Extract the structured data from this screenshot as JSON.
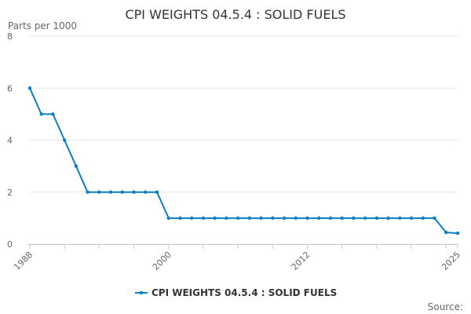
{
  "chart_data": {
    "type": "line",
    "title": "CPI WEIGHTS 04.5.4 : SOLID FUELS",
    "ylabel": "Parts per 1000",
    "xlabel": "",
    "ylim": [
      0,
      8
    ],
    "yticks": [
      "0",
      "2",
      "4",
      "6",
      "8"
    ],
    "xlim": [
      1988,
      2025
    ],
    "xticks": [
      "1988",
      "2000",
      "2012",
      "2025"
    ],
    "grid": true,
    "legend_position": "bottom",
    "series": [
      {
        "name": "CPI WEIGHTS 04.5.4 : SOLID FUELS",
        "color": "#0a7fc0",
        "x": [
          1988,
          1989,
          1990,
          1991,
          1992,
          1993,
          1994,
          1995,
          1996,
          1997,
          1998,
          1999,
          2000,
          2001,
          2002,
          2003,
          2004,
          2005,
          2006,
          2007,
          2008,
          2009,
          2010,
          2011,
          2012,
          2013,
          2014,
          2015,
          2016,
          2017,
          2018,
          2019,
          2020,
          2021,
          2022,
          2023,
          2024,
          2025
        ],
        "values": [
          6,
          5,
          5,
          4,
          3,
          2,
          2,
          2,
          2,
          2,
          2,
          2,
          1,
          1,
          1,
          1,
          1,
          1,
          1,
          1,
          1,
          1,
          1,
          1,
          1,
          1,
          1,
          1,
          1,
          1,
          1,
          1,
          1,
          1,
          1,
          1,
          0.45,
          0.42
        ]
      }
    ],
    "source_label": "Source:"
  }
}
